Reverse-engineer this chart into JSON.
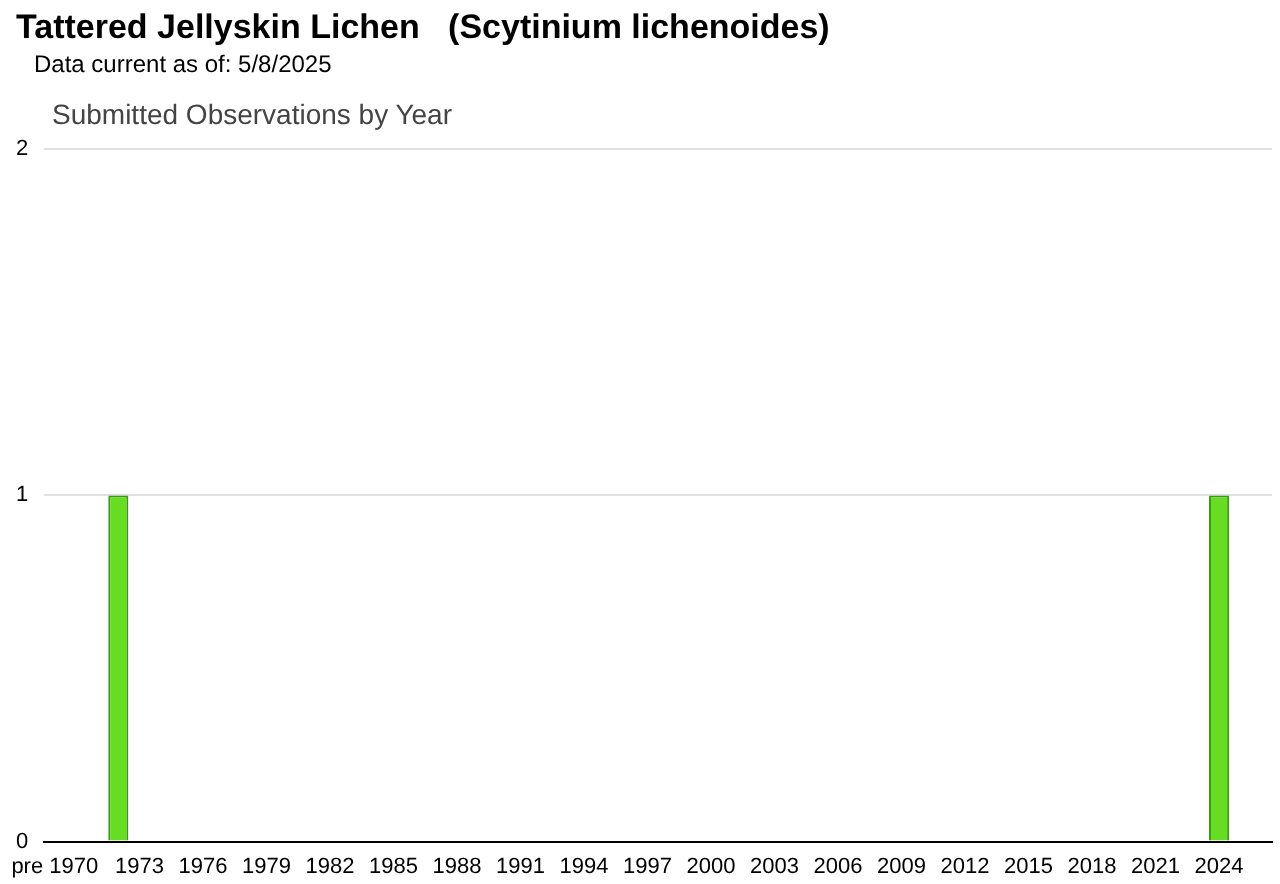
{
  "chart_data": {
    "type": "bar",
    "title": "Tattered Jellyskin Lichen   (Scytinium lichenoides)",
    "subtitle": "Data current as of: 5/8/2025",
    "annotations": [
      "Submitted Observations by Year"
    ],
    "categories": [
      "pre 1970",
      null,
      null,
      null,
      "1973",
      null,
      null,
      "1976",
      null,
      null,
      "1979",
      null,
      null,
      "1982",
      null,
      null,
      "1985",
      null,
      null,
      "1988",
      null,
      null,
      "1991",
      null,
      null,
      "1994",
      null,
      null,
      "1997",
      null,
      null,
      "2000",
      null,
      null,
      "2003",
      null,
      null,
      "2006",
      null,
      null,
      "2009",
      null,
      null,
      "2012",
      null,
      null,
      "2015",
      null,
      null,
      "2018",
      null,
      null,
      "2021",
      null,
      null,
      "2024",
      null,
      null
    ],
    "values": [
      0,
      0,
      0,
      1,
      0,
      0,
      0,
      0,
      0,
      0,
      0,
      0,
      0,
      0,
      0,
      0,
      0,
      0,
      0,
      0,
      0,
      0,
      0,
      0,
      0,
      0,
      0,
      0,
      0,
      0,
      0,
      0,
      0,
      0,
      0,
      0,
      0,
      0,
      0,
      0,
      0,
      0,
      0,
      0,
      0,
      0,
      0,
      0,
      0,
      0,
      0,
      0,
      0,
      0,
      0,
      1,
      0,
      0
    ],
    "color": "#66dd22",
    "ylim": [
      0,
      2
    ],
    "yticks": [
      0,
      1,
      2
    ],
    "grid": "y",
    "legend": false
  }
}
